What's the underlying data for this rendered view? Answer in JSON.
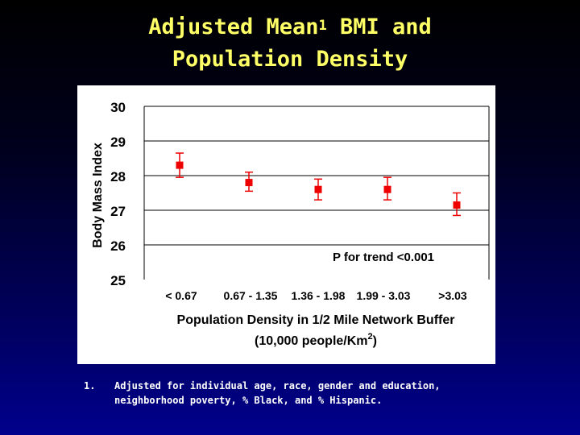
{
  "slide": {
    "title_part1": "Adjusted Mean",
    "title_sup": "1",
    "title_part2": " BMI and",
    "title_line2": "Population Density"
  },
  "footnote": {
    "number": "1.",
    "text": "Adjusted for individual age, race, gender and education, neighborhood poverty, % Black, and % Hispanic."
  },
  "chart_data": {
    "type": "scatter",
    "categories": [
      "< 0.67",
      "0.67 - 1.35",
      "1.36 - 1.98",
      "1.99 - 3.03",
      ">3.03"
    ],
    "values": [
      28.3,
      27.8,
      27.6,
      27.6,
      27.15
    ],
    "error_low": [
      27.95,
      27.55,
      27.3,
      27.3,
      26.85
    ],
    "error_high": [
      28.65,
      28.1,
      27.9,
      27.95,
      27.5
    ],
    "ylim": [
      25,
      30
    ],
    "yticks": [
      25,
      26,
      27,
      28,
      29,
      30
    ],
    "ytick_labels": [
      "25",
      "26",
      "27",
      "28",
      "29",
      "30"
    ],
    "ylabel": "Body Mass Index",
    "xlabel_line1": "Population Density in 1/2 Mile Network Buffer",
    "xlabel_line2_pre": "(10,000 people/Km",
    "xlabel_line2_sup": "2",
    "xlabel_line2_post": ")",
    "annotation": "P for trend <0.001",
    "grid": true,
    "marker_color": "#ee0000",
    "grid_color": "#000000"
  }
}
